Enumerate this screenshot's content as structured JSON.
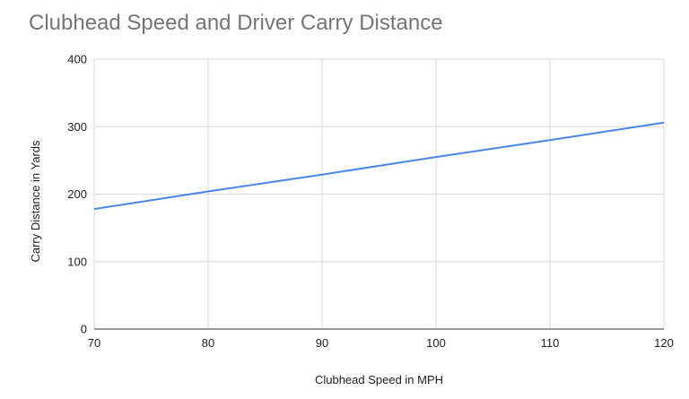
{
  "chart_data": {
    "type": "line",
    "title": "Clubhead Speed and Driver Carry Distance",
    "xlabel": "Clubhead Speed in MPH",
    "ylabel": "Carry Distance in Yards",
    "xlim": [
      70,
      120
    ],
    "ylim": [
      0,
      400
    ],
    "x_ticks": [
      70,
      80,
      90,
      100,
      110,
      120
    ],
    "y_ticks": [
      0,
      100,
      200,
      300,
      400
    ],
    "grid": true,
    "legend": "none",
    "series": [
      {
        "color": "#4a86e8",
        "x": [
          70,
          80,
          90,
          100,
          110,
          120
        ],
        "y": [
          178,
          204,
          229,
          255,
          280,
          306
        ]
      }
    ]
  }
}
